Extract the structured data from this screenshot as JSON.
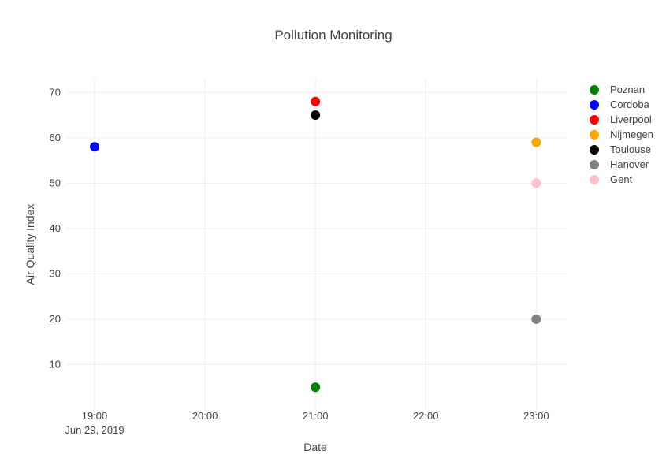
{
  "chart_data": {
    "type": "scatter",
    "title": "Pollution Monitoring",
    "xlabel": "Date",
    "ylabel": "Air Quality Index",
    "x_date_label": "Jun 29, 2019",
    "x_ticks": [
      "19:00",
      "20:00",
      "21:00",
      "22:00",
      "23:00"
    ],
    "xlim": [
      "2019-06-29 18:45",
      "2019-06-29 23:17"
    ],
    "y_ticks": [
      10,
      20,
      30,
      40,
      50,
      60,
      70
    ],
    "ylim": [
      0,
      73
    ],
    "grid": true,
    "legend_position": "top-right",
    "series": [
      {
        "name": "Poznan",
        "color": "#008000",
        "x": [
          "2019-06-29 21:00"
        ],
        "y": [
          5
        ]
      },
      {
        "name": "Cordoba",
        "color": "#0000ff",
        "x": [
          "2019-06-29 19:00"
        ],
        "y": [
          58
        ]
      },
      {
        "name": "Liverpool",
        "color": "#ff0000",
        "x": [
          "2019-06-29 21:00"
        ],
        "y": [
          68
        ]
      },
      {
        "name": "Nijmegen",
        "color": "#ffa500",
        "x": [
          "2019-06-29 23:00"
        ],
        "y": [
          59
        ]
      },
      {
        "name": "Toulouse",
        "color": "#000000",
        "x": [
          "2019-06-29 21:00"
        ],
        "y": [
          65
        ]
      },
      {
        "name": "Hanover",
        "color": "#808080",
        "x": [
          "2019-06-29 23:00"
        ],
        "y": [
          20
        ]
      },
      {
        "name": "Gent",
        "color": "#ffc0cb",
        "x": [
          "2019-06-29 23:00"
        ],
        "y": [
          50
        ]
      }
    ]
  }
}
